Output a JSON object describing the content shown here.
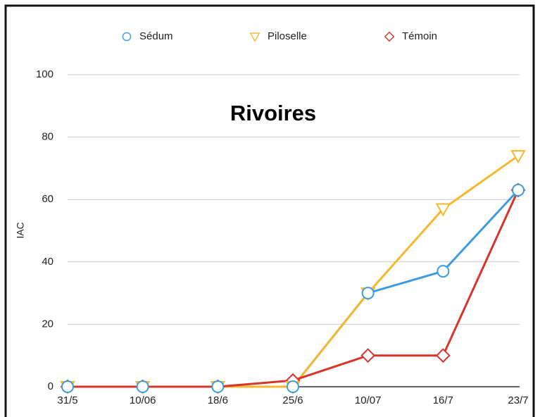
{
  "chart_data": {
    "type": "line",
    "title": "Rivoires",
    "y_label": "IAC",
    "categories": [
      "31/5",
      "10/06",
      "18/6",
      "25/6",
      "10/07",
      "16/7",
      "23/7"
    ],
    "series": [
      {
        "name": "Sédum",
        "color": "#3d9be0",
        "marker": "circle",
        "values": [
          0,
          0,
          0,
          0,
          30,
          37,
          63
        ]
      },
      {
        "name": "Piloselle",
        "color": "#f5b82e",
        "marker": "triangle-down",
        "values": [
          0,
          0,
          0,
          0,
          30,
          57,
          74
        ]
      },
      {
        "name": "Témoin",
        "color": "#d8342a",
        "marker": "diamond",
        "values": [
          0,
          0,
          0,
          2,
          10,
          10,
          63
        ]
      }
    ],
    "ylim": [
      0,
      100
    ],
    "yticks": [
      0,
      20,
      40,
      60,
      80,
      100
    ],
    "grid": true,
    "legend": "top"
  }
}
